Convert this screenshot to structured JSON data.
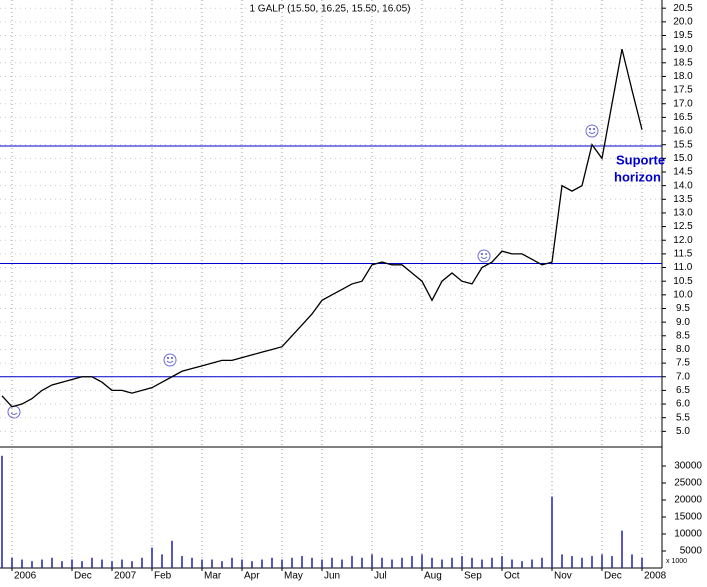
{
  "chart_data": {
    "type": "line",
    "title": "1 GALP (15.50, 16.25, 15.50, 16.05)",
    "categories": [
      null,
      "2006",
      null,
      null,
      null,
      null,
      null,
      "Dec",
      null,
      null,
      null,
      "2007",
      null,
      null,
      null,
      "Feb",
      null,
      null,
      null,
      null,
      "Mar",
      null,
      null,
      null,
      "Apr",
      null,
      null,
      null,
      "May",
      null,
      null,
      null,
      "Jun",
      null,
      null,
      null,
      null,
      "Jul",
      null,
      null,
      null,
      null,
      "Aug",
      null,
      null,
      null,
      "Sep",
      null,
      null,
      null,
      "Oct",
      null,
      null,
      null,
      null,
      "Nov",
      null,
      null,
      null,
      null,
      "Dec",
      null,
      null,
      null,
      "2008"
    ],
    "series": [
      {
        "color": "#000000",
        "values": [
          6.3,
          5.9,
          6.0,
          6.2,
          6.5,
          6.7,
          6.8,
          6.9,
          7.0,
          7.0,
          6.8,
          6.5,
          6.5,
          6.4,
          6.5,
          6.6,
          6.8,
          7.0,
          7.2,
          7.3,
          7.4,
          7.5,
          7.6,
          7.6,
          7.7,
          7.8,
          7.9,
          8.0,
          8.1,
          8.5,
          8.9,
          9.3,
          9.8,
          10.0,
          10.2,
          10.4,
          10.5,
          11.1,
          11.2,
          11.1,
          11.1,
          10.8,
          10.5,
          9.8,
          10.5,
          10.8,
          10.5,
          10.4,
          11.0,
          11.2,
          11.6,
          11.5,
          11.5,
          11.3,
          11.1,
          11.2,
          14.0,
          13.8,
          14.0,
          15.5,
          15.0,
          17.0,
          19.0,
          17.5,
          16.05
        ]
      },
      {
        "color": "#1f1fb0",
        "axis": "y2",
        "values": [
          33000,
          3000,
          2500,
          2000,
          2500,
          3000,
          2000,
          2500,
          2000,
          3000,
          2500,
          2000,
          2500,
          2000,
          3000,
          6000,
          4000,
          8000,
          3500,
          3000,
          2500,
          2500,
          2000,
          3000,
          2500,
          2000,
          2500,
          3000,
          2500,
          3000,
          3500,
          3000,
          2500,
          3000,
          2500,
          3500,
          3000,
          4000,
          3000,
          2500,
          3000,
          3500,
          4000,
          3000,
          2500,
          3000,
          3500,
          3000,
          2500,
          3000,
          3500,
          2500,
          2000,
          2500,
          3000,
          21000,
          4000,
          3500,
          3000,
          3500,
          4000,
          3500,
          11000,
          4000,
          3000
        ]
      }
    ],
    "ylim": [
      4.5,
      20.8
    ],
    "yticks": [
      {
        "value": 5,
        "label": "5.0"
      },
      {
        "value": 5.5,
        "label": "5.5"
      },
      {
        "value": 6,
        "label": "6.0"
      },
      {
        "value": 6.5,
        "label": "6.5"
      },
      {
        "value": 7,
        "label": "7.0"
      },
      {
        "value": 7.5,
        "label": "7.5"
      },
      {
        "value": 8,
        "label": "8.0"
      },
      {
        "value": 8.5,
        "label": "8.5"
      },
      {
        "value": 9,
        "label": "9.0"
      },
      {
        "value": 9.5,
        "label": "9.5"
      },
      {
        "value": 10,
        "label": "10.0"
      },
      {
        "value": 10.5,
        "label": "10.5"
      },
      {
        "value": 11,
        "label": "11.0"
      },
      {
        "value": 11.5,
        "label": "11.5"
      },
      {
        "value": 12,
        "label": "12.0"
      },
      {
        "value": 12.5,
        "label": "12.5"
      },
      {
        "value": 13,
        "label": "13.0"
      },
      {
        "value": 13.5,
        "label": "13.5"
      },
      {
        "value": 14,
        "label": "14.0"
      },
      {
        "value": 14.5,
        "label": "14.5"
      },
      {
        "value": 15,
        "label": "15.0"
      },
      {
        "value": 15.5,
        "label": "15.5"
      },
      {
        "value": 16,
        "label": "16.0"
      },
      {
        "value": 16.5,
        "label": "16.5"
      },
      {
        "value": 17,
        "label": "17.0"
      },
      {
        "value": 17.5,
        "label": "17.5"
      },
      {
        "value": 18,
        "label": "18.0"
      },
      {
        "value": 18.5,
        "label": "18.5"
      },
      {
        "value": 19,
        "label": "19.0"
      },
      {
        "value": 19.5,
        "label": "19.5"
      },
      {
        "value": 20,
        "label": "20.0"
      },
      {
        "value": 20.5,
        "label": "20.5"
      }
    ],
    "y2lim": [
      0,
      35000
    ],
    "y2ticks": [
      5000,
      10000,
      15000,
      20000,
      25000,
      30000
    ],
    "y2_unit_label": "x 1000",
    "reference_lines": {
      "color": "#0000cc",
      "values": [
        15.45,
        11.15,
        7.0
      ]
    },
    "annotation": [
      "Suporte",
      "horizon"
    ],
    "annotation_color": "#0000cc",
    "grid": true
  }
}
